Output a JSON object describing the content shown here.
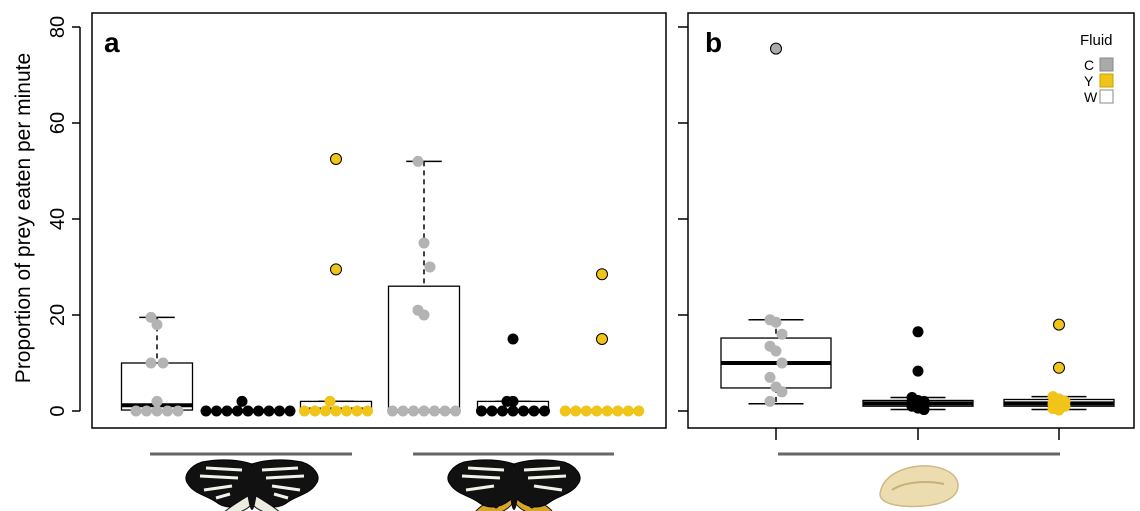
{
  "figure": {
    "ylabel": "Proportion of prey eaten per minute",
    "yticks": [
      "0",
      "20",
      "40",
      "60",
      "80"
    ],
    "ylim": [
      0,
      80
    ]
  },
  "legend": {
    "title": "Fluid",
    "items": [
      {
        "label": "C",
        "color": "#aaaaaa"
      },
      {
        "label": "Y",
        "color": "#f0c419"
      },
      {
        "label": "W",
        "color": "#ffffff"
      }
    ],
    "placement": "top-right of panel b"
  },
  "colors": {
    "C": "#aaaaaa",
    "W": "#000000",
    "Y": "#f0c419",
    "outlined_C": "#9a9a9a",
    "outlined_Y": "#f0c419"
  },
  "icons": {
    "moth_white_group": "white-hindwing-moth-icon",
    "moth_yellow_group": "yellow-hindwing-moth-icon",
    "prey_item": "cracker-prey-icon"
  },
  "chart_data": [
    {
      "panel": "a",
      "type": "box",
      "ylim": [
        0,
        80
      ],
      "groups": [
        {
          "icon": "white-hindwing-moth-icon",
          "fluids": [
            "C",
            "W",
            "Y"
          ]
        },
        {
          "icon": "yellow-hindwing-moth-icon",
          "fluids": [
            "C",
            "W",
            "Y"
          ]
        }
      ],
      "boxes": [
        {
          "fluid": "C",
          "group": 0,
          "q1": 0.2,
          "median": 1.2,
          "q3": 10,
          "whisker_low": 0,
          "whisker_high": 19.5,
          "points": [
            19.5,
            18,
            10,
            10,
            2,
            0,
            0,
            0,
            0,
            0
          ],
          "outliers": []
        },
        {
          "fluid": "W",
          "group": 0,
          "q1": 0,
          "median": 0,
          "q3": 0,
          "whisker_low": 0,
          "whisker_high": 0,
          "points": [
            2,
            0,
            0,
            0,
            0,
            0,
            0,
            0,
            0,
            0
          ],
          "outliers": []
        },
        {
          "fluid": "Y",
          "group": 0,
          "q1": 0,
          "median": 0.3,
          "q3": 2,
          "whisker_low": 0,
          "whisker_high": 2,
          "points": [
            2,
            0,
            0,
            0,
            0,
            0,
            0,
            0
          ],
          "outliers": [
            52.5,
            29.5
          ]
        },
        {
          "fluid": "C",
          "group": 1,
          "q1": 0,
          "median": 0,
          "q3": 26,
          "whisker_low": 0,
          "whisker_high": 52,
          "points": [
            52,
            35,
            30,
            21,
            20,
            0,
            0,
            0,
            0,
            0,
            0,
            0
          ],
          "outliers": []
        },
        {
          "fluid": "W",
          "group": 1,
          "q1": 0,
          "median": 0,
          "q3": 2,
          "whisker_low": 0,
          "whisker_high": 2,
          "points": [
            2,
            2,
            0,
            0,
            0,
            0,
            0,
            0,
            0
          ],
          "outliers": [
            15
          ]
        },
        {
          "fluid": "Y",
          "group": 1,
          "q1": 0,
          "median": 0,
          "q3": 0,
          "whisker_low": 0,
          "whisker_high": 0,
          "points": [
            0,
            0,
            0,
            0,
            0,
            0,
            0,
            0
          ],
          "outliers": [
            28.5,
            15
          ]
        }
      ]
    },
    {
      "panel": "b",
      "type": "box",
      "ylim": [
        0,
        80
      ],
      "groups": [
        {
          "icon": "cracker-prey-icon",
          "fluids": [
            "C",
            "W",
            "Y"
          ]
        }
      ],
      "boxes": [
        {
          "fluid": "C",
          "group": 0,
          "q1": 4.8,
          "median": 10,
          "q3": 15.2,
          "whisker_low": 1.5,
          "whisker_high": 19,
          "points": [
            19,
            18.5,
            16,
            13.5,
            12.5,
            10,
            7,
            5,
            4,
            2
          ],
          "outliers": [
            75.5
          ]
        },
        {
          "fluid": "W",
          "group": 0,
          "q1": 1,
          "median": 1.6,
          "q3": 2.2,
          "whisker_low": 0.3,
          "whisker_high": 2.8,
          "points": [
            2.8,
            2.2,
            2,
            1.8,
            1.5,
            1.2,
            1,
            0.6,
            0.3
          ],
          "outliers": [
            16.5,
            8.3
          ]
        },
        {
          "fluid": "Y",
          "group": 0,
          "q1": 1,
          "median": 1.6,
          "q3": 2.4,
          "whisker_low": 0.3,
          "whisker_high": 3,
          "points": [
            3,
            2.5,
            2,
            1.5,
            1.2,
            1,
            0.5,
            0.2
          ],
          "outliers": [
            18,
            9
          ]
        }
      ]
    }
  ],
  "panel_labels": {
    "a": "a",
    "b": "b"
  }
}
